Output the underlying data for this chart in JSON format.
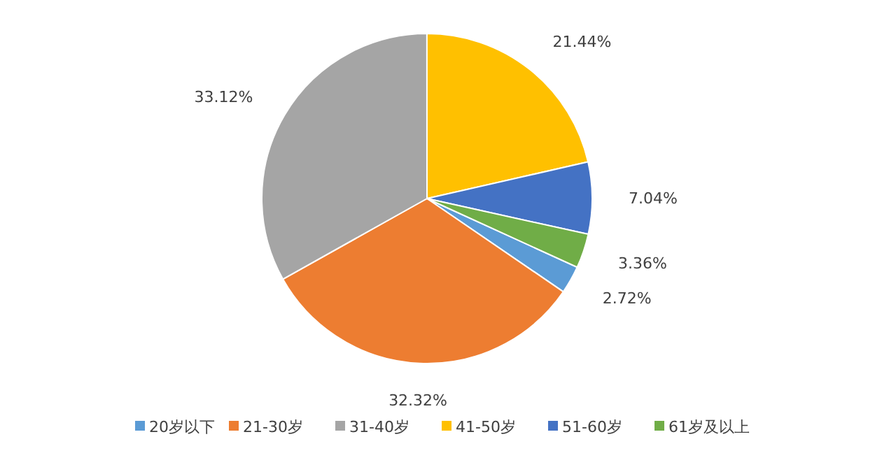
{
  "chart_data": {
    "type": "pie",
    "categories": [
      "20岁以下",
      "21-30岁",
      "31-40岁",
      "41-50岁",
      "51-60岁",
      "61岁及以上"
    ],
    "values": [
      2.72,
      32.32,
      33.12,
      21.44,
      7.04,
      3.36
    ],
    "colors": [
      "#5b9bd5",
      "#ed7d31",
      "#a5a5a5",
      "#ffc000",
      "#4472c4",
      "#70ad47"
    ],
    "value_labels": [
      "2.72%",
      "32.32%",
      "33.12%",
      "21.44%",
      "7.04%",
      "3.36%"
    ],
    "legend": "bottom"
  }
}
